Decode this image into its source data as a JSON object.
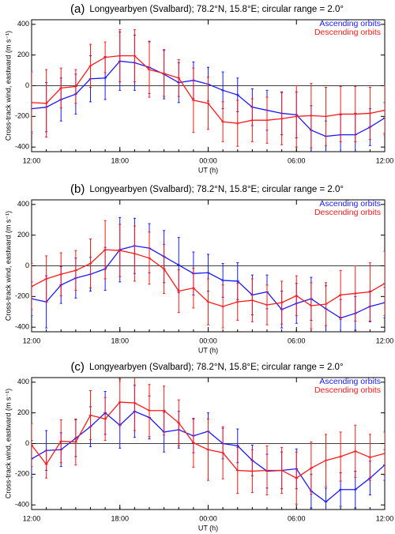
{
  "chart_data": [
    {
      "type": "line",
      "panel_label": "(a)",
      "title": "Longyearbyen (Svalbard); 78.2°N, 15.8°E; circular range = 2.0°",
      "xlabel": "UT (h)",
      "ylabel": "Cross-track wind, eastward (m s⁻¹)",
      "legend": "upper right",
      "x": [
        12,
        13,
        14,
        15,
        16,
        17,
        18,
        19,
        20,
        21,
        22,
        23,
        24,
        25,
        26,
        27,
        28,
        29,
        30,
        31,
        32,
        33,
        34,
        35,
        36
      ],
      "xlim": [
        12,
        36
      ],
      "xticks": [
        {
          "value": 12,
          "label": "12:00"
        },
        {
          "value": 18,
          "label": "18:00"
        },
        {
          "value": 24,
          "label": "00:00"
        },
        {
          "value": 30,
          "label": "06:00"
        },
        {
          "value": 36,
          "label": "12:00"
        }
      ],
      "ylim": [
        -430,
        430
      ],
      "yticks": [
        -400,
        -200,
        0,
        200,
        400
      ],
      "series": [
        {
          "name": "Ascending orbits",
          "color": "#1a1aff",
          "values": [
            -150,
            -140,
            -90,
            -55,
            45,
            50,
            160,
            150,
            120,
            75,
            20,
            35,
            10,
            -30,
            -60,
            -140,
            -160,
            -180,
            -190,
            -290,
            -330,
            -320,
            -320,
            -270,
            -210
          ],
          "errors": [
            150,
            160,
            140,
            130,
            150,
            140,
            190,
            180,
            170,
            160,
            130,
            120,
            110,
            120,
            110,
            120,
            130,
            140,
            150,
            160,
            100,
            130,
            140,
            120,
            100
          ]
        },
        {
          "name": "Descending orbits",
          "color": "#ff1a1a",
          "values": [
            -110,
            -115,
            -15,
            -5,
            130,
            185,
            195,
            195,
            105,
            80,
            50,
            -95,
            -115,
            -235,
            -245,
            -225,
            -225,
            -215,
            -200,
            -195,
            -200,
            -185,
            -185,
            -180,
            -160
          ],
          "errors": [
            200,
            220,
            130,
            110,
            140,
            100,
            170,
            170,
            180,
            150,
            120,
            210,
            170,
            130,
            150,
            140,
            150,
            170,
            200,
            210,
            190,
            180,
            180,
            170,
            160
          ]
        }
      ]
    },
    {
      "type": "line",
      "panel_label": "(b)",
      "title": "Longyearbyen (Svalbard); 78.2°N, 15.8°E; circular range = 2.0°",
      "xlabel": "UT (h)",
      "ylabel": "Cross-track wind, eastward (m s⁻¹)",
      "legend": "upper right",
      "x": [
        12,
        13,
        14,
        15,
        16,
        17,
        18,
        19,
        20,
        21,
        22,
        23,
        24,
        25,
        26,
        27,
        28,
        29,
        30,
        31,
        32,
        33,
        34,
        35,
        36
      ],
      "xlim": [
        12,
        36
      ],
      "xticks": [
        {
          "value": 12,
          "label": "12:00"
        },
        {
          "value": 18,
          "label": "18:00"
        },
        {
          "value": 24,
          "label": "00:00"
        },
        {
          "value": 30,
          "label": "06:00"
        },
        {
          "value": 36,
          "label": "12:00"
        }
      ],
      "ylim": [
        -430,
        430
      ],
      "yticks": [
        -400,
        -200,
        0,
        200,
        400
      ],
      "series": [
        {
          "name": "Ascending orbits",
          "color": "#1a1aff",
          "values": [
            -215,
            -235,
            -125,
            -80,
            -55,
            -20,
            105,
            130,
            115,
            60,
            5,
            -50,
            -45,
            -95,
            -100,
            -190,
            -170,
            -285,
            -245,
            -215,
            -280,
            -340,
            -310,
            -265,
            -240
          ],
          "errors": [
            110,
            170,
            120,
            130,
            110,
            140,
            210,
            180,
            160,
            170,
            180,
            140,
            120,
            110,
            120,
            130,
            110,
            120,
            130,
            140,
            150,
            120,
            110,
            100,
            100
          ]
        },
        {
          "name": "Descending orbits",
          "color": "#ff1a1a",
          "values": [
            -135,
            -85,
            -55,
            -30,
            15,
            105,
            100,
            80,
            50,
            -20,
            -165,
            -145,
            -235,
            -265,
            -235,
            -225,
            -255,
            -240,
            -195,
            -260,
            -250,
            -190,
            -180,
            -170,
            -115
          ],
          "errors": [
            150,
            150,
            140,
            130,
            160,
            190,
            170,
            180,
            170,
            160,
            140,
            130,
            150,
            140,
            120,
            140,
            130,
            140,
            130,
            150,
            140,
            160,
            180,
            190,
            210
          ]
        }
      ]
    },
    {
      "type": "line",
      "panel_label": "(c)",
      "title": "Longyearbyen (Svalbard); 78.2°N, 15.8°E; circular range = 2.0°",
      "xlabel": "UT (h)",
      "ylabel": "Cross-track wind, eastward (m s⁻¹)",
      "legend": "upper right",
      "x": [
        12,
        13,
        14,
        15,
        16,
        17,
        18,
        19,
        20,
        21,
        22,
        23,
        24,
        25,
        26,
        27,
        28,
        29,
        30,
        31,
        32,
        33,
        34,
        35,
        36
      ],
      "xlim": [
        12,
        36
      ],
      "xticks": [
        {
          "value": 12,
          "label": "12:00"
        },
        {
          "value": 18,
          "label": "18:00"
        },
        {
          "value": 24,
          "label": "00:00"
        },
        {
          "value": 30,
          "label": "06:00"
        },
        {
          "value": 36,
          "label": "12:00"
        }
      ],
      "ylim": [
        -430,
        430
      ],
      "yticks": [
        -400,
        -200,
        0,
        200,
        400
      ],
      "series": [
        {
          "name": "Ascending orbits",
          "color": "#1a1aff",
          "values": [
            -100,
            -45,
            -40,
            35,
            110,
            200,
            120,
            210,
            170,
            75,
            90,
            50,
            80,
            0,
            -15,
            -110,
            -180,
            -175,
            -165,
            -310,
            -380,
            -300,
            -300,
            -225,
            -140
          ],
          "errors": [
            120,
            130,
            110,
            120,
            130,
            140,
            150,
            170,
            140,
            130,
            120,
            110,
            120,
            100,
            110,
            100,
            110,
            120,
            130,
            110,
            90,
            110,
            120,
            110,
            100
          ]
        },
        {
          "name": "Descending orbits",
          "color": "#ff1a1a",
          "values": [
            -10,
            -135,
            15,
            10,
            185,
            160,
            270,
            265,
            215,
            215,
            135,
            5,
            -40,
            -60,
            -175,
            -180,
            -175,
            -175,
            -225,
            -160,
            -110,
            -85,
            -50,
            -90,
            -65
          ],
          "errors": [
            140,
            90,
            140,
            150,
            160,
            140,
            150,
            180,
            170,
            160,
            150,
            160,
            200,
            170,
            150,
            140,
            160,
            150,
            170,
            170,
            170,
            160,
            170,
            150,
            140
          ]
        }
      ]
    }
  ]
}
